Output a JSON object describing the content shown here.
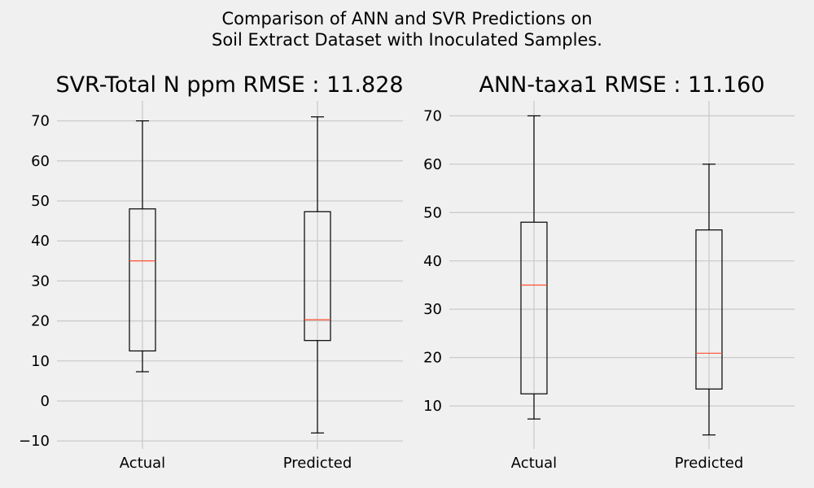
{
  "figure": {
    "title_line1": "Comparison of ANN and SVR Predictions on",
    "title_line2": "Soil Extract Dataset with Inoculated Samples."
  },
  "colors": {
    "background": "#f0f0f0",
    "grid": "#cbcbcb",
    "box_edge": "#000000",
    "median": "#fc4f30"
  },
  "chart_data": [
    {
      "type": "box",
      "title": "SVR-Total N ppm RMSE : 11.828",
      "categories": [
        "Actual",
        "Predicted"
      ],
      "ylim": [
        -12,
        75
      ],
      "yticks": [
        -10,
        0,
        10,
        20,
        30,
        40,
        50,
        60,
        70
      ],
      "grid": true,
      "boxes": [
        {
          "label": "Actual",
          "whisker_low": 7.3,
          "q1": 12.5,
          "median": 35.0,
          "q3": 48.0,
          "whisker_high": 70.0
        },
        {
          "label": "Predicted",
          "whisker_low": -8.0,
          "q1": 15.1,
          "median": 20.3,
          "q3": 47.3,
          "whisker_high": 71.0
        }
      ]
    },
    {
      "type": "box",
      "title": "ANN-taxa1 RMSE : 11.160",
      "categories": [
        "Actual",
        "Predicted"
      ],
      "ylim": [
        1.1,
        73.1
      ],
      "yticks": [
        10,
        20,
        30,
        40,
        50,
        60,
        70
      ],
      "grid": true,
      "boxes": [
        {
          "label": "Actual",
          "whisker_low": 7.3,
          "q1": 12.5,
          "median": 35.0,
          "q3": 48.0,
          "whisker_high": 70.0
        },
        {
          "label": "Predicted",
          "whisker_low": 4.0,
          "q1": 13.5,
          "median": 20.9,
          "q3": 46.4,
          "whisker_high": 60.0
        }
      ]
    }
  ]
}
